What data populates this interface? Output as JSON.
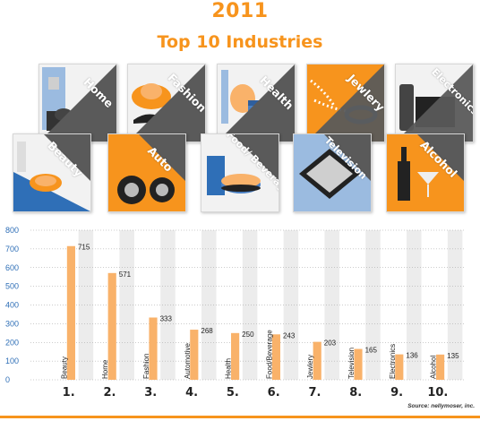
{
  "header": {
    "year": "2011",
    "title": "Top 10 Industries"
  },
  "tiles": [
    {
      "label": "Home",
      "icon": "home-icon"
    },
    {
      "label": "Fashion",
      "icon": "fashion-icon"
    },
    {
      "label": "Health",
      "icon": "health-icon"
    },
    {
      "label": "Jewlery",
      "icon": "jewlery-icon"
    },
    {
      "label": "Electronics",
      "icon": "electronics-icon"
    },
    {
      "label": "Beauty",
      "icon": "beauty-icon"
    },
    {
      "label": "Auto",
      "icon": "auto-icon"
    },
    {
      "label": "Food/ Beverage",
      "icon": "food-beverage-icon"
    },
    {
      "label": "Television",
      "icon": "television-icon"
    },
    {
      "label": "Alcohol",
      "icon": "alcohol-icon"
    }
  ],
  "colors": {
    "accent": "#f7941d",
    "bar": "#f9b26a",
    "column": "#ececec",
    "slate": "#5a5a5a",
    "sky": "#9bbbe0"
  },
  "chart_data": {
    "type": "bar",
    "categories": [
      "Beauty",
      "Home",
      "Fashion",
      "Automotive",
      "Health",
      "Food/Beverage",
      "Jewlery",
      "Television",
      "Electronics",
      "Alcohol"
    ],
    "values": [
      715,
      571,
      333,
      268,
      250,
      243,
      203,
      165,
      136,
      135
    ],
    "ranks": [
      "1.",
      "2.",
      "3.",
      "4.",
      "5.",
      "6.",
      "7.",
      "8.",
      "9.",
      "10."
    ],
    "yticks": [
      "0",
      "100",
      "200",
      "300",
      "400",
      "500",
      "600",
      "700",
      "800"
    ],
    "ylim": [
      0,
      800
    ],
    "grid": true
  },
  "source": "Source: nellymoser, inc."
}
